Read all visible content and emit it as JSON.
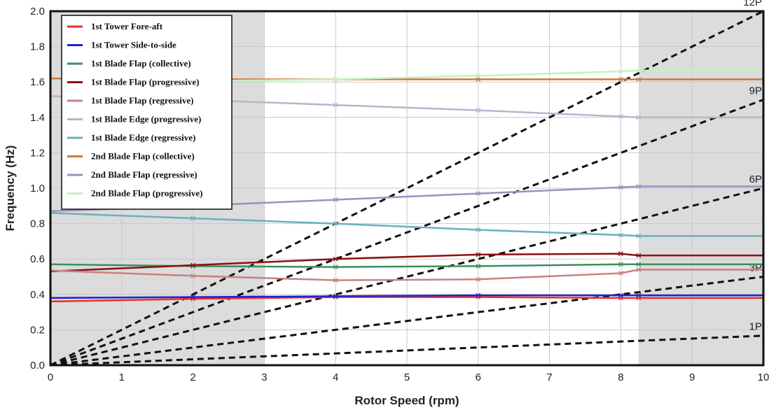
{
  "chart_data": {
    "type": "line",
    "xlabel": "Rotor Speed (rpm)",
    "ylabel": "Frequency (Hz)",
    "xlim": [
      0,
      10
    ],
    "ylim": [
      0,
      2.0
    ],
    "x_ticks": [
      "0",
      "1",
      "2",
      "3",
      "4",
      "5",
      "6",
      "7",
      "8",
      "9",
      "10"
    ],
    "y_ticks": [
      "0.0",
      "0.2",
      "0.4",
      "0.6",
      "0.8",
      "1.0",
      "1.2",
      "1.4",
      "1.6",
      "1.8",
      "2.0"
    ],
    "grid": true,
    "legend_position": "top-left",
    "shaded_regions": [
      {
        "x_start": 0,
        "x_end": 3.0,
        "color": "#dcdcdc"
      },
      {
        "x_start": 8.25,
        "x_end": 10,
        "color": "#dcdcdc"
      }
    ],
    "harmonics": [
      {
        "label": "1P",
        "x": [
          0,
          10
        ],
        "y": [
          0,
          0.167
        ]
      },
      {
        "label": "3P",
        "x": [
          0,
          10
        ],
        "y": [
          0,
          0.5
        ]
      },
      {
        "label": "6P",
        "x": [
          0,
          10
        ],
        "y": [
          0,
          1.0
        ]
      },
      {
        "label": "9P",
        "x": [
          0,
          10
        ],
        "y": [
          0,
          1.5
        ]
      },
      {
        "label": "12P",
        "x": [
          0,
          10
        ],
        "y": [
          0,
          2.0
        ]
      }
    ],
    "series": [
      {
        "name": "1st Tower Fore-aft",
        "color": "#e8302a",
        "x": [
          0,
          2,
          4,
          6,
          8,
          8.25,
          10
        ],
        "y": [
          0.36,
          0.375,
          0.385,
          0.385,
          0.38,
          0.38,
          0.38
        ]
      },
      {
        "name": "1st Tower Side-to-side",
        "color": "#1f1fd6",
        "x": [
          0,
          2,
          4,
          6,
          8,
          8.25,
          10
        ],
        "y": [
          0.38,
          0.385,
          0.39,
          0.395,
          0.395,
          0.395,
          0.395
        ]
      },
      {
        "name": "1st Blade Flap (collective)",
        "color": "#3a8f5a",
        "x": [
          0,
          2,
          4,
          6,
          8,
          8.25,
          10
        ],
        "y": [
          0.57,
          0.56,
          0.555,
          0.56,
          0.57,
          0.57,
          0.57
        ]
      },
      {
        "name": "1st Blade Flap (progressive)",
        "color": "#8b1010",
        "x": [
          0,
          2,
          4,
          6,
          8,
          8.25,
          10
        ],
        "y": [
          0.53,
          0.565,
          0.6,
          0.625,
          0.63,
          0.62,
          0.62
        ]
      },
      {
        "name": "1st Blade Flap (regressive)",
        "color": "#c98080",
        "x": [
          0,
          2,
          4,
          6,
          8,
          8.25,
          10
        ],
        "y": [
          0.535,
          0.505,
          0.48,
          0.485,
          0.52,
          0.54,
          0.54
        ]
      },
      {
        "name": "1st Blade Edge (progressive)",
        "color": "#b0b8cc",
        "x": [
          0,
          2,
          4,
          6,
          8,
          8.25,
          10
        ],
        "y": [
          1.52,
          1.5,
          1.47,
          1.44,
          1.405,
          1.4,
          1.4
        ]
      },
      {
        "name": "1st Blade Edge (regressive)",
        "color": "#6ab0bc",
        "x": [
          0,
          2,
          4,
          6,
          8,
          8.25,
          10
        ],
        "y": [
          0.86,
          0.83,
          0.8,
          0.765,
          0.735,
          0.73,
          0.73
        ]
      },
      {
        "name": "2nd Blade Flap (collective)",
        "color": "#c87a3c",
        "x": [
          0,
          2,
          4,
          6,
          8,
          8.25,
          10
        ],
        "y": [
          1.62,
          1.615,
          1.615,
          1.615,
          1.615,
          1.615,
          1.615
        ]
      },
      {
        "name": "2nd Blade Flap (regressive)",
        "color": "#9c90be",
        "x": [
          0,
          2,
          4,
          6,
          8,
          8.25,
          10
        ],
        "y": [
          0.87,
          0.9,
          0.935,
          0.97,
          1.005,
          1.01,
          1.01
        ]
      },
      {
        "name": "2nd Blade Flap (progressive)",
        "color": "#c6f0c0",
        "x": [
          0,
          2,
          4,
          6,
          8,
          8.25,
          10
        ],
        "y": [
          1.6,
          1.605,
          1.615,
          1.635,
          1.66,
          1.665,
          1.665
        ]
      }
    ]
  }
}
